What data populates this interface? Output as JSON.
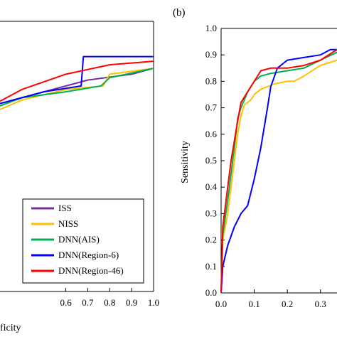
{
  "chart_data": [
    {
      "type": "line",
      "panel": "left (a, cropped)",
      "xlabel": "ficity",
      "ylabel": "",
      "xlim": [
        0.3,
        1.0
      ],
      "ylim": [
        0.8,
        1.03
      ],
      "x_ticks": [
        "0.6",
        "0.7",
        "0.8",
        "0.9",
        "1.0"
      ],
      "x_tick_values": [
        0.6,
        0.7,
        0.8,
        0.9,
        1.0
      ],
      "grid": false,
      "legend_position": "bottom-right",
      "legend": [
        "ISS",
        "NISS",
        "DNN(AIS)",
        "DNN(Region-6)",
        "DNN(Region-46)"
      ],
      "series": [
        {
          "name": "ISS",
          "color": "#7030a0",
          "x": [
            0.3,
            0.5,
            0.7,
            0.9,
            1.0
          ],
          "y": [
            0.96,
            0.97,
            0.98,
            0.985,
            0.99
          ]
        },
        {
          "name": "NISS",
          "color": "#ffc000",
          "x": [
            0.3,
            0.4,
            0.6,
            0.77,
            0.8,
            1.0
          ],
          "y": [
            0.955,
            0.963,
            0.972,
            0.975,
            0.985,
            0.99
          ]
        },
        {
          "name": "DNN(AIS)",
          "color": "#00b050",
          "x": [
            0.3,
            0.4,
            0.6,
            0.76,
            0.8,
            1.0
          ],
          "y": [
            0.958,
            0.965,
            0.97,
            0.975,
            0.982,
            0.99
          ]
        },
        {
          "name": "DNN(Region-6)",
          "color": "#0000ff",
          "x": [
            0.3,
            0.5,
            0.67,
            0.68,
            1.0
          ],
          "y": [
            0.96,
            0.97,
            0.975,
            1.0,
            1.0
          ]
        },
        {
          "name": "DNN(Region-46)",
          "color": "#ff0000",
          "x": [
            0.3,
            0.4,
            0.6,
            0.8,
            1.0
          ],
          "y": [
            0.962,
            0.972,
            0.985,
            0.993,
            0.996
          ]
        }
      ]
    },
    {
      "type": "line",
      "panel": "(b)",
      "xlabel": "",
      "ylabel": "Sensitivity",
      "xlim": [
        0.0,
        0.35
      ],
      "ylim": [
        0.0,
        1.0
      ],
      "x_ticks": [
        "0.0",
        "0.1",
        "0.2",
        "0.3"
      ],
      "x_tick_values": [
        0.0,
        0.1,
        0.2,
        0.3
      ],
      "y_ticks": [
        "0.0",
        "0.1",
        "0.2",
        "0.3",
        "0.4",
        "0.5",
        "0.6",
        "0.7",
        "0.8",
        "0.9",
        "1.0"
      ],
      "y_tick_values": [
        0.0,
        0.1,
        0.2,
        0.3,
        0.4,
        0.5,
        0.6,
        0.7,
        0.8,
        0.9,
        1.0
      ],
      "grid": false,
      "series": [
        {
          "name": "NISS",
          "color": "#ffc000",
          "x": [
            0,
            0.005,
            0.02,
            0.04,
            0.05,
            0.06,
            0.07,
            0.09,
            0.1,
            0.12,
            0.16,
            0.2,
            0.22,
            0.25,
            0.3,
            0.35
          ],
          "y": [
            0,
            0.2,
            0.3,
            0.5,
            0.6,
            0.67,
            0.71,
            0.73,
            0.75,
            0.77,
            0.79,
            0.8,
            0.8,
            0.82,
            0.86,
            0.88
          ]
        },
        {
          "name": "DNN(AIS)",
          "color": "#00b050",
          "x": [
            0,
            0.005,
            0.02,
            0.04,
            0.05,
            0.06,
            0.08,
            0.1,
            0.12,
            0.15,
            0.2,
            0.25,
            0.3,
            0.35
          ],
          "y": [
            0,
            0.22,
            0.35,
            0.55,
            0.66,
            0.7,
            0.76,
            0.8,
            0.82,
            0.83,
            0.84,
            0.85,
            0.88,
            0.91
          ]
        },
        {
          "name": "DNN(Region-6)",
          "color": "#0000ff",
          "x": [
            0,
            0.005,
            0.02,
            0.04,
            0.06,
            0.08,
            0.1,
            0.12,
            0.14,
            0.15,
            0.17,
            0.2,
            0.25,
            0.3,
            0.33,
            0.35
          ],
          "y": [
            0,
            0.1,
            0.18,
            0.25,
            0.3,
            0.33,
            0.43,
            0.55,
            0.7,
            0.78,
            0.85,
            0.88,
            0.89,
            0.9,
            0.92,
            0.92
          ]
        },
        {
          "name": "DNN(Region-46)",
          "color": "#ff0000",
          "x": [
            0,
            0.005,
            0.02,
            0.03,
            0.05,
            0.06,
            0.08,
            0.1,
            0.12,
            0.15,
            0.2,
            0.25,
            0.3,
            0.35
          ],
          "y": [
            0,
            0.25,
            0.4,
            0.5,
            0.65,
            0.72,
            0.76,
            0.8,
            0.84,
            0.85,
            0.85,
            0.86,
            0.88,
            0.92
          ]
        }
      ]
    }
  ]
}
